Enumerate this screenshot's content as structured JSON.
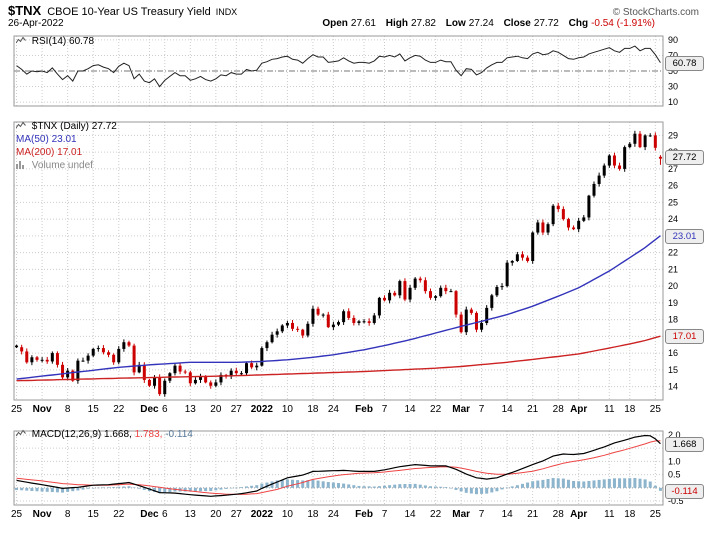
{
  "header": {
    "symbol": "$TNX",
    "title": "CBOE 10-Year US Treasury Yield",
    "exchange": "INDX",
    "copyright": "© StockCharts.com",
    "date": "26-Apr-2022",
    "quote": {
      "open_label": "Open",
      "open_value": "27.61",
      "high_label": "High",
      "high_value": "27.82",
      "low_label": "Low",
      "low_value": "27.24",
      "close_label": "Close",
      "close_value": "27.72",
      "chg_label": "Chg",
      "chg_value": "-0.54 (-1.91%)"
    }
  },
  "legends": {
    "rsi": {
      "label": "RSI(14)",
      "value": "60.78"
    },
    "price": {
      "label": "$TNX (Daily)",
      "value": "27.72"
    },
    "ma50": {
      "label": "MA(50)",
      "value": "23.01"
    },
    "ma200": {
      "label": "MA(200)",
      "value": "17.01"
    },
    "volume": {
      "label": "Volume",
      "value": "undef"
    },
    "macd": {
      "label": "MACD(12,26,9)",
      "macd_value": "1.668,",
      "signal_value": "1.783,",
      "hist_value": "-0.114"
    }
  },
  "axis_boxes": {
    "rsi": "60.78",
    "price": "27.72",
    "ma50": "23.01",
    "ma200": "17.01",
    "macd": "1.668",
    "hist": "-0.114"
  },
  "colors": {
    "up": "#000000",
    "down": "#cc0000",
    "ma50": "#3333bb",
    "ma200": "#cc2222",
    "rsi_line": "#222222",
    "macd_line": "#000000",
    "signal_line": "#ee4444",
    "hist_fill": "#8cb4cc",
    "grid": "#cccccc",
    "grid_dark": "#777777",
    "grid_zero": "#999999",
    "panel_border": "#999999",
    "text": "#000000"
  },
  "chart_data": [
    {
      "type": "line",
      "panel": "rsi",
      "title": "RSI(14)",
      "last_value": 60.78,
      "ylim": [
        10,
        90
      ],
      "grid": true,
      "mid_line": 50,
      "y_ticks": [
        {
          "v": 90,
          "t": "90"
        },
        {
          "v": 70,
          "t": "70"
        },
        {
          "v": 50,
          "t": "50"
        },
        {
          "v": 30,
          "t": "30"
        },
        {
          "v": 10,
          "t": "10"
        }
      ],
      "values": [
        57,
        52,
        46,
        50,
        49,
        50,
        48,
        54,
        46,
        39,
        44,
        37,
        50,
        50,
        53,
        57,
        58,
        55,
        53,
        48,
        56,
        60,
        57,
        40,
        46,
        37,
        35,
        40,
        30,
        38,
        43,
        48,
        44,
        44,
        38,
        40,
        43,
        39,
        37,
        40,
        45,
        44,
        48,
        46,
        46,
        52,
        50,
        51,
        60,
        62,
        65,
        66,
        68,
        69,
        65,
        64,
        60,
        66,
        71,
        68,
        68,
        61,
        62,
        63,
        67,
        63,
        60,
        61,
        61,
        60,
        63,
        69,
        68,
        70,
        68,
        72,
        63,
        67,
        70,
        69,
        64,
        61,
        61,
        64,
        62,
        62,
        51,
        44,
        53,
        52,
        45,
        48,
        54,
        58,
        61,
        61,
        67,
        68,
        69,
        67,
        66,
        72,
        74,
        71,
        72,
        76,
        74,
        70,
        66,
        65,
        67,
        68,
        72,
        74,
        76,
        78,
        80,
        76,
        74,
        79,
        79,
        82,
        76,
        79,
        79,
        71,
        60.78
      ]
    },
    {
      "type": "candlestick",
      "panel": "price",
      "title": "$TNX (Daily)",
      "ylim": [
        14,
        29
      ],
      "grid": true,
      "legend_position": "top-left",
      "y_ticks": [
        {
          "v": 29,
          "t": "29"
        },
        {
          "v": 28,
          "t": "28"
        },
        {
          "v": 27,
          "t": "27"
        },
        {
          "v": 26,
          "t": "26"
        },
        {
          "v": 25,
          "t": "25"
        },
        {
          "v": 24,
          "t": "24"
        },
        {
          "v": 23,
          "t": "23"
        },
        {
          "v": 22,
          "t": "22"
        },
        {
          "v": 21,
          "t": "21"
        },
        {
          "v": 20,
          "t": "20"
        },
        {
          "v": 19,
          "t": "19"
        },
        {
          "v": 18,
          "t": "18"
        },
        {
          "v": 17,
          "t": "17"
        },
        {
          "v": 16,
          "t": "16"
        },
        {
          "v": 15,
          "t": "15"
        },
        {
          "v": 14,
          "t": "14"
        }
      ],
      "x_ticks": [
        {
          "i": 0,
          "t": "25"
        },
        {
          "i": 5,
          "t": "Nov",
          "b": 1
        },
        {
          "i": 10,
          "t": "8"
        },
        {
          "i": 15,
          "t": "15"
        },
        {
          "i": 20,
          "t": "22"
        },
        {
          "i": 26,
          "t": "Dec",
          "b": 1
        },
        {
          "i": 29,
          "t": "6"
        },
        {
          "i": 34,
          "t": "13"
        },
        {
          "i": 39,
          "t": "20"
        },
        {
          "i": 43,
          "t": "27"
        },
        {
          "i": 48,
          "t": "2022",
          "b": 1
        },
        {
          "i": 53,
          "t": "10"
        },
        {
          "i": 58,
          "t": "18"
        },
        {
          "i": 62,
          "t": "24"
        },
        {
          "i": 68,
          "t": "Feb",
          "b": 1
        },
        {
          "i": 72,
          "t": "7"
        },
        {
          "i": 77,
          "t": "14"
        },
        {
          "i": 82,
          "t": "22"
        },
        {
          "i": 87,
          "t": "Mar",
          "b": 1
        },
        {
          "i": 91,
          "t": "7"
        },
        {
          "i": 96,
          "t": "14"
        },
        {
          "i": 101,
          "t": "21"
        },
        {
          "i": 106,
          "t": "28"
        },
        {
          "i": 110,
          "t": "Apr",
          "b": 1
        },
        {
          "i": 116,
          "t": "11"
        },
        {
          "i": 120,
          "t": "18"
        },
        {
          "i": 125,
          "t": "25"
        }
      ],
      "closes": [
        16.35,
        16.1,
        15.45,
        15.75,
        15.6,
        15.6,
        15.5,
        16.0,
        15.3,
        14.55,
        14.95,
        14.35,
        15.55,
        15.55,
        15.85,
        16.25,
        16.3,
        16.05,
        15.9,
        15.45,
        16.25,
        16.65,
        16.45,
        14.85,
        15.3,
        14.4,
        14.05,
        14.55,
        13.55,
        14.35,
        14.8,
        15.25,
        14.9,
        14.85,
        14.2,
        14.4,
        14.6,
        14.25,
        14.05,
        14.25,
        14.7,
        14.6,
        14.95,
        14.8,
        14.8,
        15.4,
        15.15,
        15.25,
        16.3,
        16.65,
        17.1,
        17.3,
        17.65,
        17.8,
        17.45,
        17.4,
        17.05,
        17.75,
        18.65,
        18.3,
        18.3,
        17.55,
        17.7,
        17.85,
        18.5,
        18.1,
        17.8,
        17.9,
        17.9,
        17.8,
        18.25,
        19.3,
        19.15,
        19.6,
        19.45,
        20.3,
        19.2,
        19.9,
        20.45,
        20.35,
        19.7,
        19.3,
        19.4,
        19.9,
        19.7,
        19.7,
        18.3,
        17.25,
        18.6,
        18.4,
        17.4,
        17.8,
        18.7,
        19.45,
        19.95,
        20.0,
        21.4,
        21.5,
        21.9,
        21.7,
        21.5,
        23.2,
        23.8,
        23.2,
        23.7,
        24.8,
        24.6,
        24.0,
        23.5,
        23.4,
        23.9,
        24.1,
        25.4,
        26.1,
        26.6,
        27.2,
        27.8,
        27.2,
        27.0,
        28.3,
        28.5,
        29.1,
        28.3,
        29.0,
        29.0,
        28.26,
        27.72
      ],
      "last_ohlc": {
        "open": 27.61,
        "high": 27.82,
        "low": 27.24,
        "close": 27.72
      },
      "ma50_last": 23.01,
      "ma200_last": 17.01,
      "ma50_anchors": [
        [
          0,
          14.45
        ],
        [
          10,
          14.8
        ],
        [
          20,
          15.15
        ],
        [
          26,
          15.3
        ],
        [
          34,
          15.45
        ],
        [
          43,
          15.45
        ],
        [
          48,
          15.5
        ],
        [
          53,
          15.6
        ],
        [
          58,
          15.75
        ],
        [
          62,
          15.9
        ],
        [
          68,
          16.2
        ],
        [
          72,
          16.45
        ],
        [
          77,
          16.8
        ],
        [
          82,
          17.2
        ],
        [
          87,
          17.6
        ],
        [
          91,
          17.9
        ],
        [
          96,
          18.3
        ],
        [
          101,
          18.8
        ],
        [
          106,
          19.4
        ],
        [
          110,
          19.9
        ],
        [
          116,
          20.9
        ],
        [
          120,
          21.7
        ],
        [
          123,
          22.3
        ],
        [
          126,
          23.01
        ]
      ],
      "ma200_anchors": [
        [
          0,
          14.35
        ],
        [
          20,
          14.5
        ],
        [
          43,
          14.65
        ],
        [
          48,
          14.7
        ],
        [
          68,
          14.9
        ],
        [
          82,
          15.1
        ],
        [
          87,
          15.2
        ],
        [
          96,
          15.45
        ],
        [
          106,
          15.8
        ],
        [
          110,
          15.95
        ],
        [
          116,
          16.3
        ],
        [
          120,
          16.55
        ],
        [
          123,
          16.75
        ],
        [
          126,
          17.01
        ]
      ],
      "volume": "undef"
    },
    {
      "type": "line",
      "panel": "macd",
      "title": "MACD(12,26,9)",
      "last_values": {
        "macd": 1.668,
        "signal": 1.783,
        "hist": -0.114
      },
      "ylim": [
        -0.5,
        2.0
      ],
      "grid": true,
      "y_ticks": [
        {
          "v": 2.0,
          "t": "2.0"
        },
        {
          "v": 1.5,
          "t": "1.5"
        },
        {
          "v": 1.0,
          "t": "1.0"
        },
        {
          "v": 0.5,
          "t": "0.5"
        },
        {
          "v": 0.0,
          "t": "0.0"
        },
        {
          "v": -0.5,
          "t": "-0.5"
        }
      ],
      "anchors": [
        [
          0,
          0.28,
          0.36
        ],
        [
          3,
          0.18,
          0.3
        ],
        [
          5,
          0.12,
          0.26
        ],
        [
          9,
          -0.02,
          0.16
        ],
        [
          12,
          0.02,
          0.12
        ],
        [
          15,
          0.1,
          0.1
        ],
        [
          18,
          0.12,
          0.1
        ],
        [
          20,
          0.16,
          0.12
        ],
        [
          22,
          0.2,
          0.14
        ],
        [
          25,
          0.02,
          0.1
        ],
        [
          28,
          -0.18,
          0.02
        ],
        [
          31,
          -0.2,
          -0.06
        ],
        [
          34,
          -0.26,
          -0.12
        ],
        [
          38,
          -0.32,
          -0.2
        ],
        [
          41,
          -0.28,
          -0.24
        ],
        [
          44,
          -0.22,
          -0.25
        ],
        [
          47,
          -0.12,
          -0.22
        ],
        [
          48,
          -0.02,
          -0.18
        ],
        [
          51,
          0.22,
          -0.06
        ],
        [
          53,
          0.38,
          0.06
        ],
        [
          56,
          0.48,
          0.2
        ],
        [
          58,
          0.62,
          0.32
        ],
        [
          61,
          0.64,
          0.42
        ],
        [
          64,
          0.66,
          0.5
        ],
        [
          67,
          0.62,
          0.55
        ],
        [
          70,
          0.62,
          0.57
        ],
        [
          72,
          0.68,
          0.6
        ],
        [
          75,
          0.8,
          0.66
        ],
        [
          78,
          0.88,
          0.73
        ],
        [
          81,
          0.83,
          0.77
        ],
        [
          84,
          0.83,
          0.8
        ],
        [
          86,
          0.7,
          0.78
        ],
        [
          88,
          0.52,
          0.71
        ],
        [
          90,
          0.38,
          0.62
        ],
        [
          92,
          0.33,
          0.55
        ],
        [
          94,
          0.38,
          0.51
        ],
        [
          96,
          0.52,
          0.51
        ],
        [
          98,
          0.65,
          0.55
        ],
        [
          101,
          0.88,
          0.63
        ],
        [
          103,
          1.02,
          0.72
        ],
        [
          105,
          1.2,
          0.83
        ],
        [
          107,
          1.28,
          0.93
        ],
        [
          109,
          1.26,
          1.0
        ],
        [
          111,
          1.3,
          1.06
        ],
        [
          113,
          1.42,
          1.14
        ],
        [
          115,
          1.55,
          1.23
        ],
        [
          117,
          1.7,
          1.34
        ],
        [
          119,
          1.8,
          1.44
        ],
        [
          121,
          1.92,
          1.55
        ],
        [
          123,
          1.98,
          1.66
        ],
        [
          124,
          1.97,
          1.73
        ],
        [
          125,
          1.85,
          1.77
        ],
        [
          126,
          1.668,
          1.783
        ]
      ]
    }
  ]
}
